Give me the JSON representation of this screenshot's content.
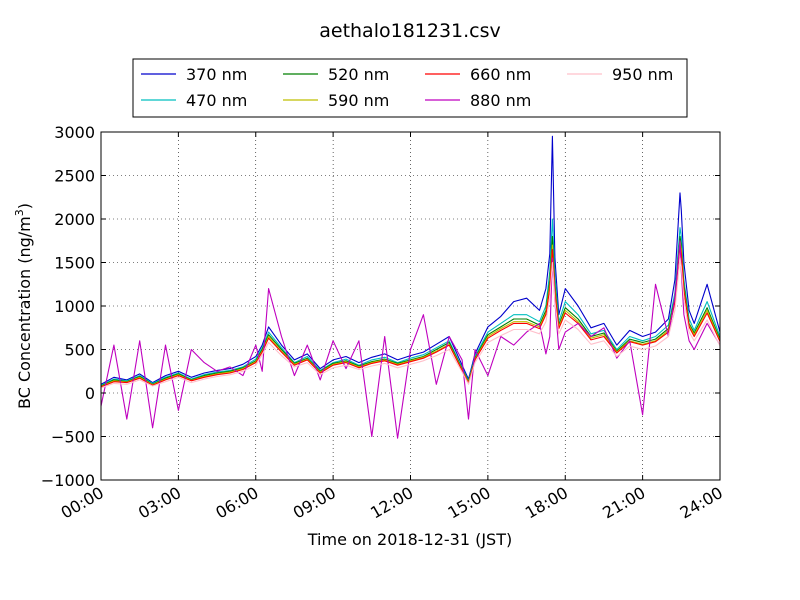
{
  "chart_data": {
    "type": "line",
    "title": "aethalo181231.csv",
    "xlabel": "Time on 2018-12-31 (JST)",
    "ylabel": "BC Concentration (ng/m",
    "ylabel_sup": "3",
    "ylabel_suffix": ")",
    "xlim": [
      0,
      24
    ],
    "ylim": [
      -1000,
      3000
    ],
    "grid": true,
    "legend_position": "top",
    "x_ticks": [
      {
        "value": 0,
        "label": "00:00"
      },
      {
        "value": 3,
        "label": "03:00"
      },
      {
        "value": 6,
        "label": "06:00"
      },
      {
        "value": 9,
        "label": "09:00"
      },
      {
        "value": 12,
        "label": "12:00"
      },
      {
        "value": 15,
        "label": "15:00"
      },
      {
        "value": 18,
        "label": "18:00"
      },
      {
        "value": 21,
        "label": "21:00"
      },
      {
        "value": 24,
        "label": "24:00"
      }
    ],
    "y_ticks": [
      {
        "value": 3000,
        "label": "3000"
      },
      {
        "value": 2500,
        "label": "2500"
      },
      {
        "value": 2000,
        "label": "2000"
      },
      {
        "value": 1500,
        "label": "1500"
      },
      {
        "value": 1000,
        "label": "1000"
      },
      {
        "value": 500,
        "label": "500"
      },
      {
        "value": 0,
        "label": "0"
      },
      {
        "value": -500,
        "label": "−500"
      },
      {
        "value": -1000,
        "label": "−1000"
      }
    ],
    "x": [
      0,
      0.5,
      1,
      1.5,
      2,
      2.5,
      3,
      3.5,
      4,
      4.5,
      5,
      5.5,
      6,
      6.25,
      6.5,
      7,
      7.5,
      8,
      8.5,
      9,
      9.5,
      10,
      10.5,
      11,
      11.5,
      12,
      12.5,
      13,
      13.5,
      14,
      14.25,
      14.5,
      15,
      15.5,
      16,
      16.5,
      17,
      17.25,
      17.4,
      17.5,
      17.6,
      17.75,
      18,
      18.5,
      19,
      19.5,
      20,
      20.5,
      21,
      21.5,
      22,
      22.25,
      22.45,
      22.5,
      22.6,
      22.8,
      23,
      23.5,
      24
    ],
    "series": [
      {
        "name": "370 nm",
        "color": "#0000cc",
        "values": [
          100,
          180,
          150,
          220,
          120,
          200,
          250,
          180,
          230,
          260,
          280,
          330,
          420,
          550,
          760,
          550,
          380,
          450,
          280,
          380,
          420,
          350,
          410,
          450,
          380,
          430,
          470,
          560,
          650,
          320,
          160,
          450,
          760,
          880,
          1050,
          1090,
          950,
          1200,
          1600,
          2950,
          1550,
          900,
          1200,
          1000,
          750,
          800,
          550,
          720,
          650,
          700,
          850,
          1300,
          2300,
          2100,
          1500,
          950,
          800,
          1250,
          700
        ]
      },
      {
        "name": "470 nm",
        "color": "#00bfbf",
        "values": [
          90,
          160,
          140,
          200,
          110,
          180,
          230,
          160,
          210,
          240,
          260,
          300,
          390,
          520,
          700,
          520,
          350,
          420,
          260,
          350,
          390,
          320,
          380,
          410,
          350,
          400,
          440,
          520,
          600,
          290,
          140,
          420,
          700,
          800,
          900,
          900,
          820,
          1000,
          1400,
          2000,
          1350,
          820,
          1050,
          900,
          680,
          720,
          500,
          650,
          600,
          650,
          780,
          1150,
          1900,
          1800,
          1300,
          850,
          720,
          1050,
          650
        ]
      },
      {
        "name": "520 nm",
        "color": "#007f00",
        "values": [
          80,
          150,
          130,
          190,
          100,
          170,
          220,
          150,
          200,
          230,
          250,
          290,
          370,
          500,
          670,
          500,
          340,
          400,
          250,
          340,
          370,
          310,
          360,
          390,
          340,
          380,
          420,
          500,
          580,
          280,
          130,
          400,
          670,
          760,
          850,
          850,
          780,
          950,
          1300,
          1800,
          1250,
          780,
          980,
          850,
          650,
          690,
          480,
          620,
          580,
          620,
          740,
          1100,
          1800,
          1700,
          1250,
          800,
          690,
          980,
          620
        ]
      },
      {
        "name": "590 nm",
        "color": "#bfbf00",
        "values": [
          75,
          140,
          125,
          180,
          95,
          160,
          210,
          145,
          190,
          220,
          240,
          280,
          360,
          480,
          650,
          480,
          330,
          390,
          240,
          330,
          360,
          300,
          350,
          380,
          330,
          370,
          410,
          480,
          560,
          270,
          120,
          390,
          650,
          740,
          820,
          820,
          760,
          920,
          1250,
          1700,
          1200,
          760,
          950,
          820,
          630,
          670,
          470,
          600,
          560,
          600,
          720,
          1060,
          1750,
          1650,
          1200,
          780,
          670,
          950,
          600
        ]
      },
      {
        "name": "660 nm",
        "color": "#ff0000",
        "values": [
          70,
          130,
          120,
          170,
          90,
          150,
          200,
          140,
          180,
          210,
          230,
          270,
          350,
          470,
          630,
          470,
          320,
          380,
          230,
          320,
          350,
          290,
          340,
          370,
          320,
          360,
          400,
          470,
          550,
          260,
          110,
          380,
          630,
          720,
          800,
          800,
          740,
          900,
          1200,
          1650,
          1150,
          740,
          920,
          800,
          610,
          650,
          460,
          590,
          550,
          590,
          700,
          1040,
          1700,
          1600,
          1180,
          760,
          650,
          920,
          590
        ]
      },
      {
        "name": "880 nm",
        "color": "#bf00bf",
        "values": [
          -150,
          550,
          -300,
          600,
          -400,
          550,
          -200,
          500,
          350,
          250,
          300,
          200,
          550,
          250,
          1200,
          650,
          200,
          550,
          150,
          600,
          280,
          600,
          -500,
          650,
          -520,
          500,
          900,
          100,
          650,
          380,
          -300,
          500,
          200,
          650,
          550,
          700,
          800,
          450,
          650,
          1550,
          1050,
          500,
          700,
          800,
          650,
          750,
          400,
          600,
          -250,
          1250,
          650,
          1100,
          1750,
          1400,
          900,
          600,
          500,
          800,
          550
        ]
      },
      {
        "name": "950 nm",
        "color": "#ffc0cb",
        "values": [
          60,
          110,
          100,
          150,
          80,
          130,
          180,
          120,
          160,
          190,
          210,
          250,
          320,
          440,
          580,
          430,
          300,
          350,
          210,
          290,
          320,
          270,
          310,
          340,
          290,
          330,
          370,
          430,
          500,
          240,
          100,
          350,
          580,
          660,
          730,
          730,
          680,
          820,
          1100,
          1500,
          1050,
          680,
          840,
          730,
          560,
          600,
          420,
          540,
          500,
          540,
          650,
          950,
          1550,
          1450,
          1080,
          700,
          600,
          840,
          540
        ]
      }
    ]
  }
}
